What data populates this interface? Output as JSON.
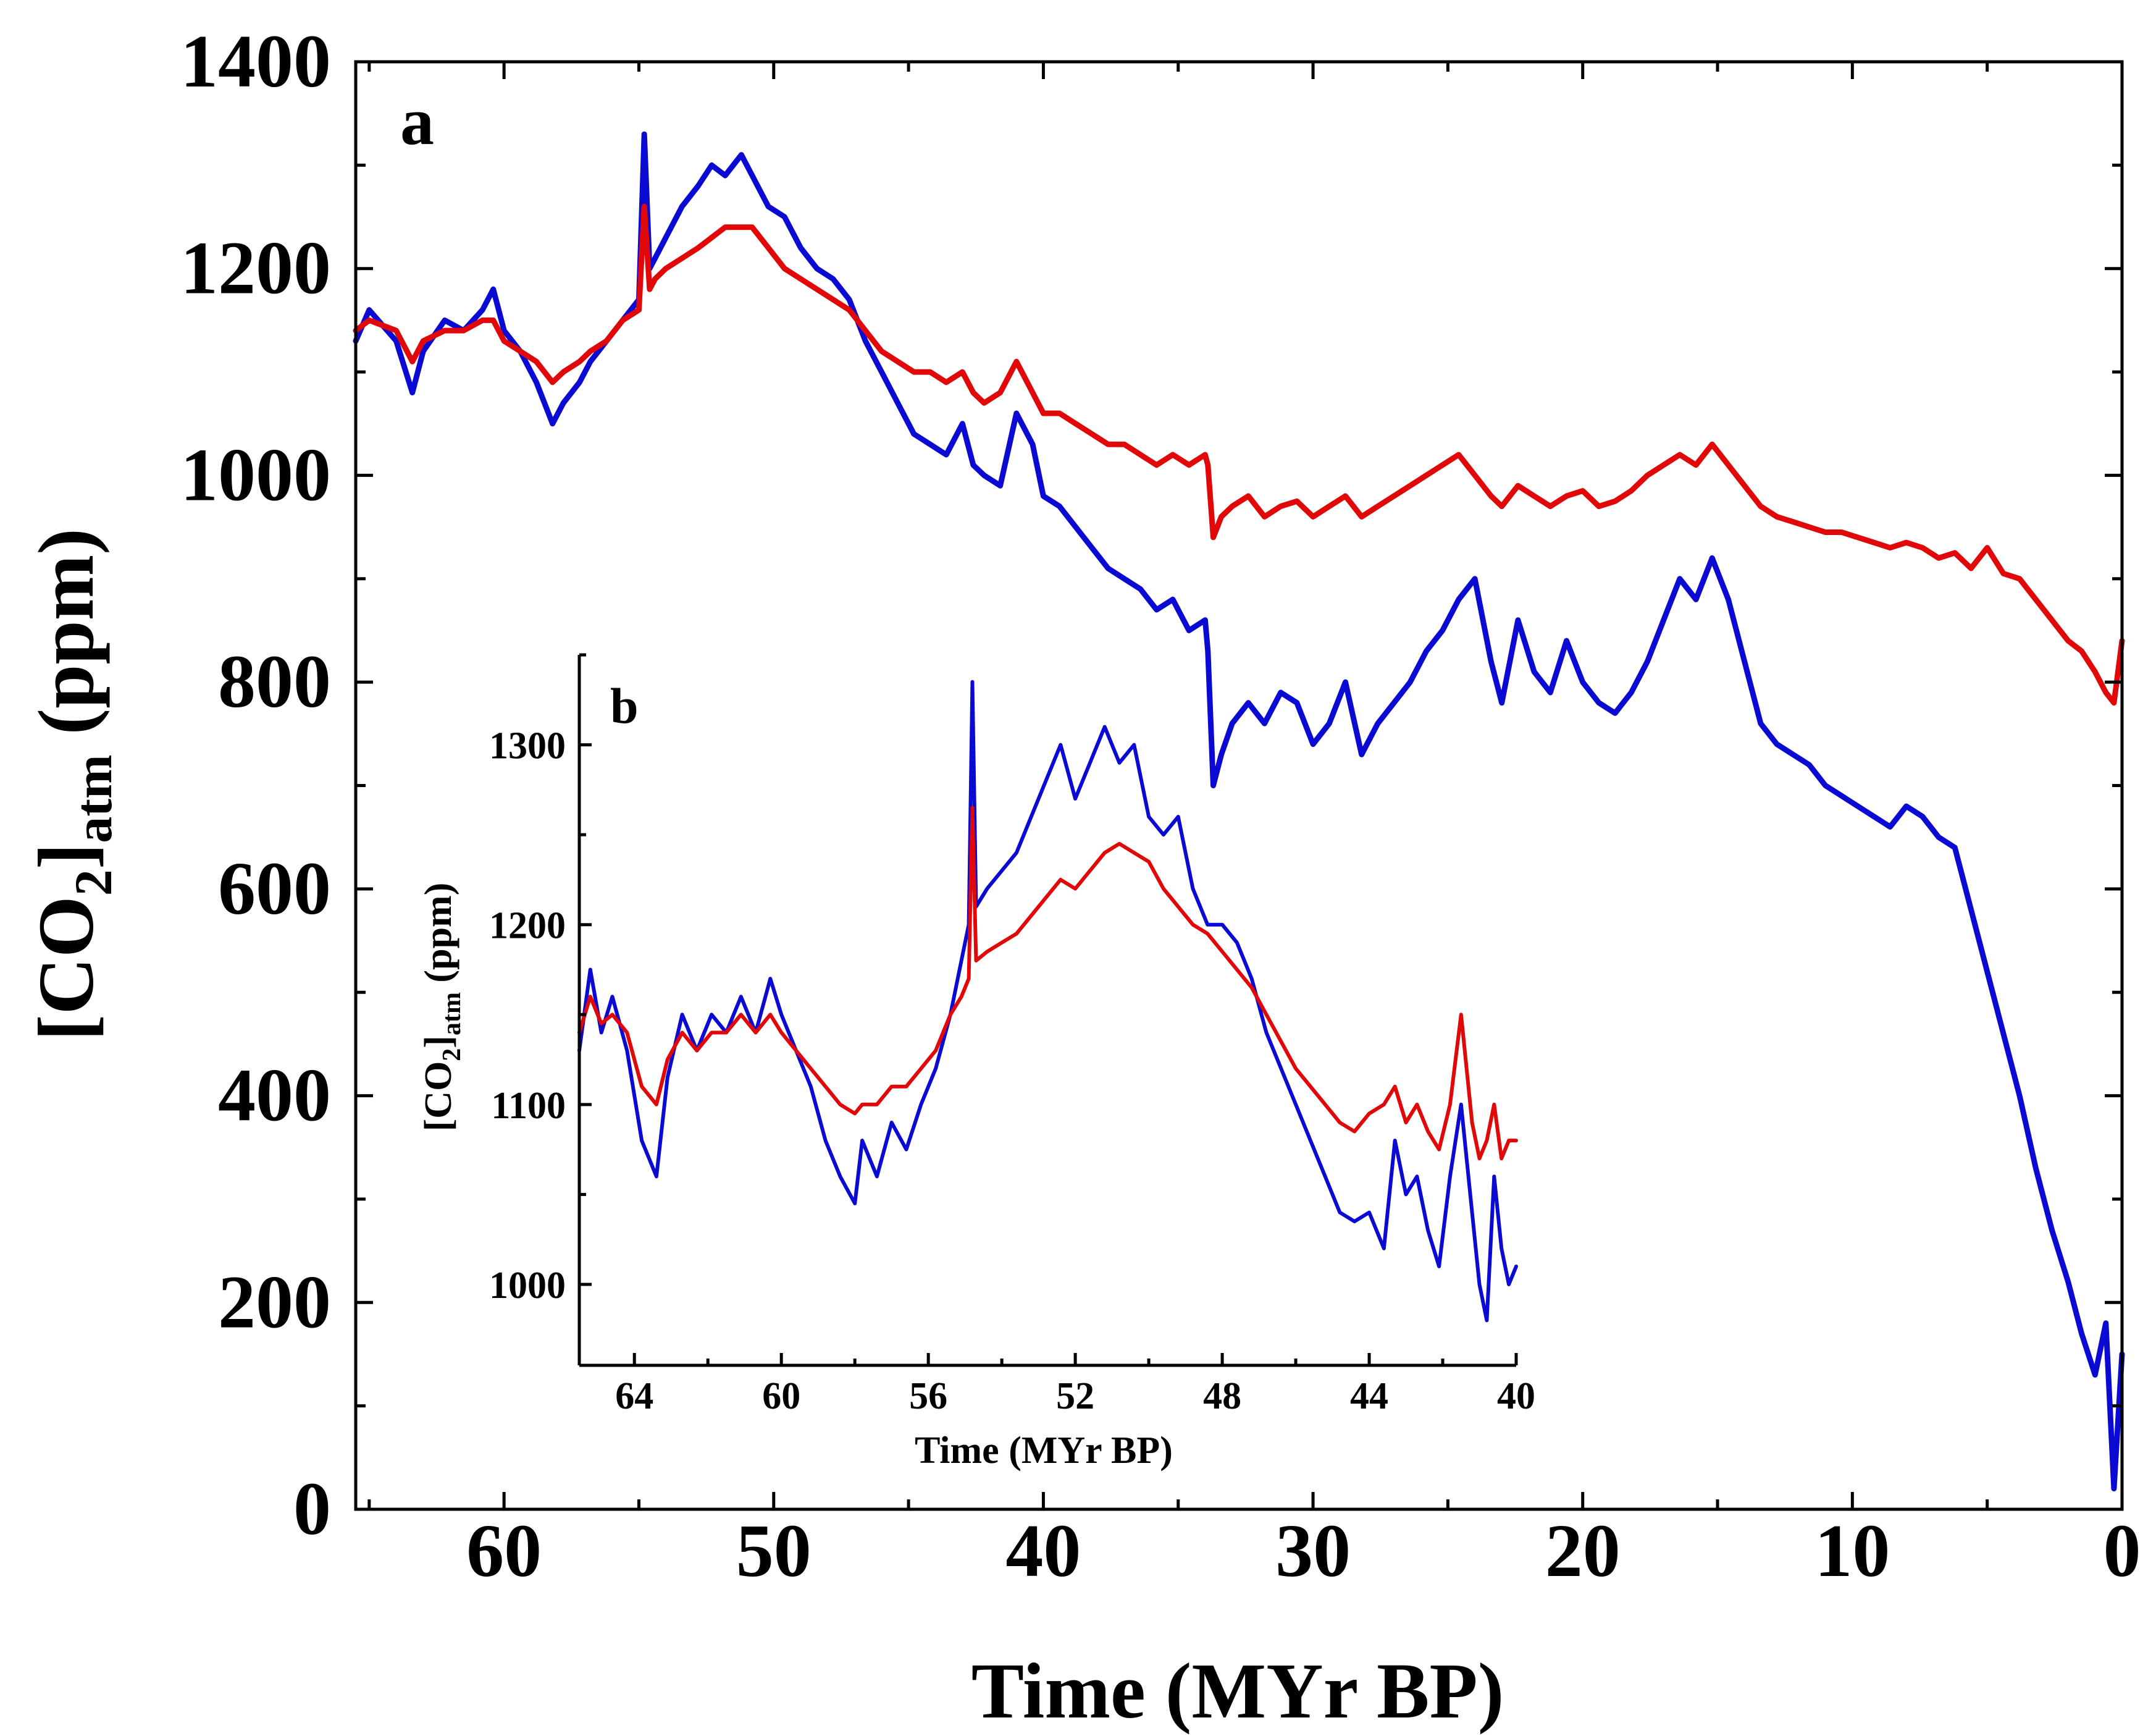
{
  "colors": {
    "series_a": "#0a0ad2",
    "series_b": "#e00808"
  },
  "chart_data": [
    {
      "panel": "a",
      "type": "line",
      "xlabel": "Time (MYr BP)",
      "ylabel": {
        "base": "[CO",
        "sub1": "2",
        "mid": "]",
        "sub2": "atm",
        "tail": "  (ppm)"
      },
      "xlim": [
        65.5,
        0
      ],
      "ylim": [
        0,
        1400
      ],
      "xticks": [
        60,
        50,
        40,
        30,
        20,
        10,
        0
      ],
      "xtick_labels": [
        "60",
        "50",
        "40",
        "30",
        "20",
        "10",
        "0"
      ],
      "xminor_step": 5,
      "yticks": [
        0,
        200,
        400,
        600,
        800,
        1000,
        1200,
        1400
      ],
      "ytick_labels": [
        "0",
        "200",
        "400",
        "600",
        "800",
        "1000",
        "1200",
        "1400"
      ],
      "yminor_step": 100,
      "series": [
        {
          "name": "blue",
          "x": [
            65.5,
            65,
            64,
            63.4,
            63,
            62.2,
            61.5,
            60.8,
            60.4,
            60,
            59.4,
            58.8,
            58.2,
            57.8,
            57.2,
            56.8,
            56.2,
            55.6,
            55,
            54.8,
            54.6,
            54.4,
            54,
            53.4,
            52.8,
            52.3,
            51.8,
            51.2,
            50.8,
            50.2,
            49.6,
            49,
            48.4,
            47.8,
            47.2,
            46.6,
            46,
            45.4,
            44.8,
            44.2,
            43.6,
            43,
            42.6,
            42.2,
            41.6,
            41,
            40.4,
            40,
            39.4,
            38.8,
            38.2,
            37.6,
            37,
            36.4,
            35.8,
            35.2,
            34.6,
            34,
            33.9,
            33.7,
            33.4,
            33,
            32.4,
            31.8,
            31.2,
            30.6,
            30,
            29.4,
            28.8,
            28.2,
            27.6,
            27,
            26.4,
            25.8,
            25.2,
            24.6,
            24,
            23.4,
            23,
            22.4,
            21.8,
            21.2,
            20.6,
            20,
            19.4,
            18.8,
            18.2,
            17.6,
            17,
            16.4,
            15.8,
            15.2,
            14.6,
            14,
            13.4,
            12.8,
            12.2,
            11.6,
            11,
            10.4,
            9.8,
            9.2,
            8.6,
            8,
            7.4,
            6.8,
            6.2,
            5.6,
            5,
            4.4,
            3.8,
            3.2,
            2.6,
            2,
            1.5,
            1,
            0.6,
            0.3,
            0
          ],
          "y": [
            1130,
            1160,
            1130,
            1080,
            1120,
            1150,
            1140,
            1160,
            1180,
            1140,
            1120,
            1090,
            1050,
            1070,
            1090,
            1110,
            1130,
            1150,
            1170,
            1330,
            1200,
            1210,
            1230,
            1260,
            1280,
            1300,
            1290,
            1310,
            1290,
            1260,
            1250,
            1220,
            1200,
            1190,
            1170,
            1130,
            1100,
            1070,
            1040,
            1030,
            1020,
            1050,
            1010,
            1000,
            990,
            1060,
            1030,
            980,
            970,
            950,
            930,
            910,
            900,
            890,
            870,
            880,
            850,
            860,
            830,
            700,
            730,
            760,
            780,
            760,
            790,
            780,
            740,
            760,
            800,
            730,
            760,
            780,
            800,
            830,
            850,
            880,
            900,
            820,
            780,
            860,
            810,
            790,
            840,
            800,
            780,
            770,
            790,
            820,
            860,
            900,
            880,
            920,
            880,
            820,
            760,
            740,
            730,
            720,
            700,
            690,
            680,
            670,
            660,
            680,
            670,
            650,
            640,
            580,
            520,
            460,
            400,
            330,
            270,
            220,
            170,
            130,
            180,
            20,
            150
          ]
        },
        {
          "name": "red",
          "x": [
            65.5,
            65,
            64,
            63.4,
            63,
            62.2,
            61.5,
            60.8,
            60.4,
            60,
            59.4,
            58.8,
            58.2,
            57.8,
            57.2,
            56.8,
            56.2,
            55.6,
            55,
            54.8,
            54.6,
            54.4,
            54,
            53.4,
            52.8,
            52.3,
            51.8,
            51.2,
            50.8,
            50.2,
            49.6,
            49,
            48.4,
            47.8,
            47.2,
            46.6,
            46,
            45.4,
            44.8,
            44.2,
            43.6,
            43,
            42.6,
            42.2,
            41.6,
            41,
            40.4,
            40,
            39.4,
            38.8,
            38.2,
            37.6,
            37,
            36.4,
            35.8,
            35.2,
            34.6,
            34,
            33.9,
            33.7,
            33.4,
            33,
            32.4,
            31.8,
            31.2,
            30.6,
            30,
            29.4,
            28.8,
            28.2,
            27.6,
            27,
            26.4,
            25.8,
            25.2,
            24.6,
            24,
            23.4,
            23,
            22.4,
            21.8,
            21.2,
            20.6,
            20,
            19.4,
            18.8,
            18.2,
            17.6,
            17,
            16.4,
            15.8,
            15.2,
            14.6,
            14,
            13.4,
            12.8,
            12.2,
            11.6,
            11,
            10.4,
            9.8,
            9.2,
            8.6,
            8,
            7.4,
            6.8,
            6.2,
            5.6,
            5,
            4.4,
            3.8,
            3.2,
            2.6,
            2,
            1.5,
            1,
            0.6,
            0.3,
            0
          ],
          "y": [
            1140,
            1150,
            1140,
            1110,
            1130,
            1140,
            1140,
            1150,
            1150,
            1130,
            1120,
            1110,
            1090,
            1100,
            1110,
            1120,
            1130,
            1150,
            1160,
            1260,
            1180,
            1190,
            1200,
            1210,
            1220,
            1230,
            1240,
            1240,
            1240,
            1220,
            1200,
            1190,
            1180,
            1170,
            1160,
            1140,
            1120,
            1110,
            1100,
            1100,
            1090,
            1100,
            1080,
            1070,
            1080,
            1110,
            1080,
            1060,
            1060,
            1050,
            1040,
            1030,
            1030,
            1020,
            1010,
            1020,
            1010,
            1020,
            1010,
            940,
            960,
            970,
            980,
            960,
            970,
            975,
            960,
            970,
            980,
            960,
            970,
            980,
            990,
            1000,
            1010,
            1020,
            1000,
            980,
            970,
            990,
            980,
            970,
            980,
            985,
            970,
            975,
            985,
            1000,
            1010,
            1020,
            1010,
            1030,
            1010,
            990,
            970,
            960,
            955,
            950,
            945,
            945,
            940,
            935,
            930,
            935,
            930,
            920,
            925,
            910,
            930,
            905,
            900,
            880,
            860,
            840,
            830,
            810,
            790,
            780,
            840
          ]
        }
      ],
      "panel_label": "a"
    },
    {
      "panel": "b",
      "type": "line",
      "xlabel": "Time (MYr BP)",
      "ylabel": {
        "base": "[CO",
        "sub1": "2",
        "mid": "]",
        "sub2": "atm",
        "tail": " (ppm)"
      },
      "xlim": [
        65.5,
        40
      ],
      "ylim": [
        955,
        1350
      ],
      "xticks": [
        64,
        60,
        56,
        52,
        48,
        44,
        40
      ],
      "xtick_labels": [
        "64",
        "60",
        "56",
        "52",
        "48",
        "44",
        "40"
      ],
      "xminor_step": 2,
      "yticks": [
        1000,
        1100,
        1200,
        1300
      ],
      "ytick_labels": [
        "1000",
        "1100",
        "1200",
        "1300"
      ],
      "yminor_step": 50,
      "series": [
        {
          "name": "blue",
          "x": [
            65.5,
            65.2,
            64.9,
            64.6,
            64.2,
            63.8,
            63.4,
            63.1,
            62.7,
            62.3,
            61.9,
            61.5,
            61.1,
            60.7,
            60.3,
            60,
            59.6,
            59.2,
            58.8,
            58.4,
            58,
            57.8,
            57.4,
            57,
            56.6,
            56.2,
            55.8,
            55.4,
            55.1,
            54.9,
            54.8,
            54.7,
            54.4,
            54,
            53.6,
            53.2,
            52.8,
            52.4,
            52,
            51.6,
            51.2,
            50.8,
            50.4,
            50,
            49.6,
            49.2,
            48.8,
            48.4,
            48,
            47.6,
            47.2,
            46.8,
            46.4,
            46,
            45.6,
            45.2,
            44.8,
            44.4,
            44,
            43.6,
            43.3,
            43,
            42.7,
            42.4,
            42.1,
            41.8,
            41.5,
            41.2,
            41,
            40.8,
            40.6,
            40.4,
            40.2,
            40
          ],
          "y": [
            1130,
            1175,
            1140,
            1160,
            1130,
            1080,
            1060,
            1115,
            1150,
            1130,
            1150,
            1140,
            1160,
            1140,
            1170,
            1150,
            1130,
            1110,
            1080,
            1060,
            1045,
            1080,
            1060,
            1090,
            1075,
            1100,
            1120,
            1150,
            1180,
            1200,
            1335,
            1210,
            1220,
            1230,
            1240,
            1260,
            1280,
            1300,
            1270,
            1290,
            1310,
            1290,
            1300,
            1260,
            1250,
            1260,
            1220,
            1200,
            1200,
            1190,
            1170,
            1140,
            1120,
            1100,
            1080,
            1060,
            1040,
            1035,
            1040,
            1020,
            1080,
            1050,
            1060,
            1030,
            1010,
            1060,
            1100,
            1040,
            1000,
            980,
            1060,
            1020,
            1000,
            1010
          ]
        },
        {
          "name": "red",
          "x": [
            65.5,
            65.2,
            64.9,
            64.6,
            64.2,
            63.8,
            63.4,
            63.1,
            62.7,
            62.3,
            61.9,
            61.5,
            61.1,
            60.7,
            60.3,
            60,
            59.6,
            59.2,
            58.8,
            58.4,
            58,
            57.8,
            57.4,
            57,
            56.6,
            56.2,
            55.8,
            55.4,
            55.1,
            54.9,
            54.8,
            54.7,
            54.4,
            54,
            53.6,
            53.2,
            52.8,
            52.4,
            52,
            51.6,
            51.2,
            50.8,
            50.4,
            50,
            49.6,
            49.2,
            48.8,
            48.4,
            48,
            47.6,
            47.2,
            46.8,
            46.4,
            46,
            45.6,
            45.2,
            44.8,
            44.4,
            44,
            43.6,
            43.3,
            43,
            42.7,
            42.4,
            42.1,
            41.8,
            41.5,
            41.2,
            41,
            40.8,
            40.6,
            40.4,
            40.2,
            40
          ],
          "y": [
            1140,
            1160,
            1145,
            1150,
            1140,
            1110,
            1100,
            1125,
            1140,
            1130,
            1140,
            1140,
            1150,
            1140,
            1150,
            1140,
            1130,
            1120,
            1110,
            1100,
            1095,
            1100,
            1100,
            1110,
            1110,
            1120,
            1130,
            1150,
            1160,
            1170,
            1265,
            1180,
            1185,
            1190,
            1195,
            1205,
            1215,
            1225,
            1220,
            1230,
            1240,
            1245,
            1240,
            1235,
            1220,
            1210,
            1200,
            1195,
            1185,
            1175,
            1165,
            1150,
            1135,
            1120,
            1110,
            1100,
            1090,
            1085,
            1095,
            1100,
            1110,
            1090,
            1100,
            1085,
            1075,
            1100,
            1150,
            1090,
            1070,
            1080,
            1100,
            1070,
            1080,
            1080
          ]
        }
      ],
      "panel_label": "b"
    }
  ]
}
